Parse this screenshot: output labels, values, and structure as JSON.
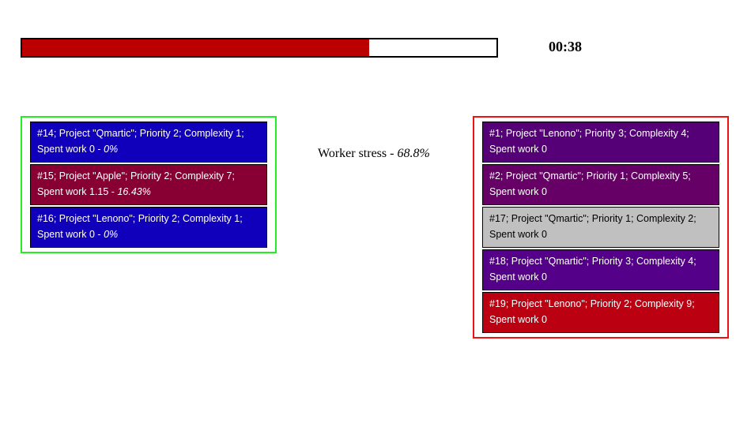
{
  "timer": "00:38",
  "progress": {
    "fraction": 0.731,
    "fill_color": "#bb0000"
  },
  "stress": {
    "label": "Worker stress - ",
    "value": "68.8%"
  },
  "in_progress": [
    {
      "text": "#14; Project \"Qmartic\"; Priority 2; Complexity 1; Spent work 0 - ",
      "percent": "0%",
      "color": "#1100bb"
    },
    {
      "text": "#15; Project \"Apple\"; Priority 2; Complexity 7; Spent work 1.15 - ",
      "percent": "16.43%",
      "color": "#880033"
    },
    {
      "text": "#16; Project \"Lenono\"; Priority 2; Complexity 1; Spent work 0 - ",
      "percent": "0%",
      "color": "#1100bb"
    }
  ],
  "queue": [
    {
      "text": "#1; Project \"Lenono\"; Priority 3; Complexity 4; Spent work 0",
      "color": "#550077",
      "light": false
    },
    {
      "text": "#2; Project \"Qmartic\"; Priority 1; Complexity 5; Spent work 0",
      "color": "#660066",
      "light": false
    },
    {
      "text": "#17; Project \"Qmartic\"; Priority 1; Complexity 2; Spent work 0",
      "color": "#c0c0c0",
      "light": true
    },
    {
      "text": "#18; Project \"Qmartic\"; Priority 3; Complexity 4; Spent work 0",
      "color": "#550088",
      "light": false
    },
    {
      "text": "#19; Project \"Lenono\"; Priority 2; Complexity 9; Spent work 0",
      "color": "#bb0011",
      "light": false
    }
  ]
}
